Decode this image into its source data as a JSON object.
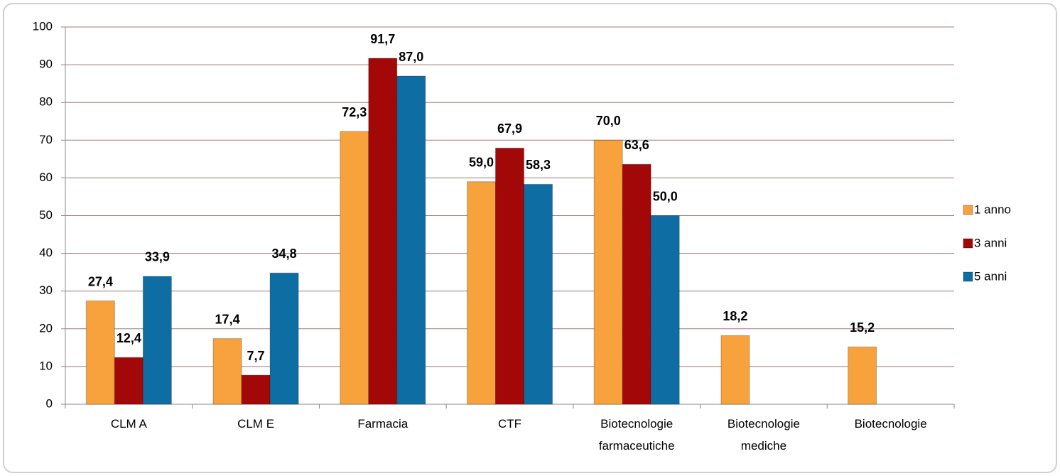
{
  "chart_data": {
    "type": "bar",
    "categories": [
      "CLM A",
      "CLM E",
      "Farmacia",
      "CTF",
      "Biotecnologie farmaceutiche",
      "Biotecnologie mediche",
      "Biotecnologie"
    ],
    "series": [
      {
        "name": "1 anno",
        "color": "#f7a23c",
        "values": [
          27.4,
          17.4,
          72.3,
          59.0,
          70.0,
          18.2,
          15.2
        ],
        "value_labels": [
          "27,4",
          "17,4",
          "72,3",
          "59,0",
          "70,0",
          "18,2",
          "15,2"
        ]
      },
      {
        "name": "3 anni",
        "color": "#a30808",
        "values": [
          12.4,
          7.7,
          91.7,
          67.9,
          63.6,
          null,
          null
        ],
        "value_labels": [
          "12,4",
          "7,7",
          "91,7",
          "67,9",
          "63,6",
          null,
          null
        ]
      },
      {
        "name": "5 anni",
        "color": "#0e6ea3",
        "values": [
          33.9,
          34.8,
          87.0,
          58.3,
          50.0,
          null,
          null
        ],
        "value_labels": [
          "33,9",
          "34,8",
          "87,0",
          "58,3",
          "50,0",
          null,
          null
        ]
      }
    ],
    "ylim": [
      0,
      100
    ],
    "yticks": [
      0,
      10,
      20,
      30,
      40,
      50,
      60,
      70,
      80,
      90,
      100
    ],
    "grid": true,
    "legend": "right"
  }
}
